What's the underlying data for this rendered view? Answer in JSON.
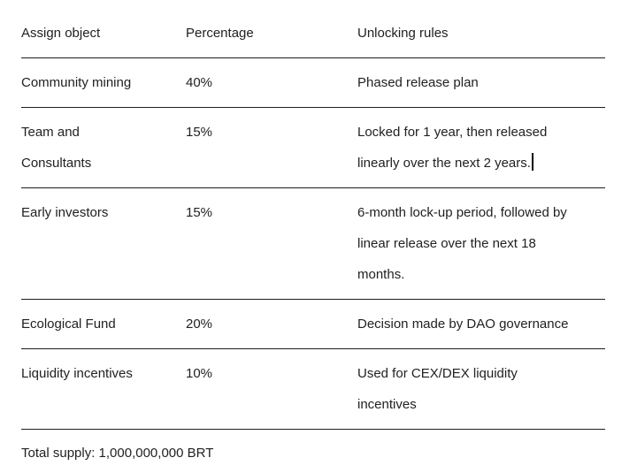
{
  "colors": {
    "background": "#ffffff",
    "text": "#212121",
    "rule_line": "#1e1e1e",
    "caret": "#000000"
  },
  "table": {
    "columns": [
      "Assign object",
      "Percentage",
      "Unlocking rules"
    ],
    "rows": [
      {
        "object": [
          "Community mining"
        ],
        "percentage": "40%",
        "rules": [
          "Phased release plan"
        ]
      },
      {
        "object": [
          "Team and",
          "Consultants"
        ],
        "percentage": "15%",
        "rules": [
          "Locked for 1 year, then released",
          "linearly over the next 2 years."
        ]
      },
      {
        "object": [
          "Early investors"
        ],
        "percentage": "15%",
        "rules": [
          "6-month lock-up period, followed by",
          "linear release over the next 18",
          "months."
        ]
      },
      {
        "object": [
          "Ecological Fund"
        ],
        "percentage": "20%",
        "rules": [
          "Decision made by DAO governance"
        ]
      },
      {
        "object": [
          "Liquidity incentives"
        ],
        "percentage": "10%",
        "rules": [
          "Used for CEX/DEX liquidity",
          "incentives"
        ]
      }
    ]
  },
  "footer": {
    "total_supply": "Total supply: 1,000,000,000 BRT"
  }
}
